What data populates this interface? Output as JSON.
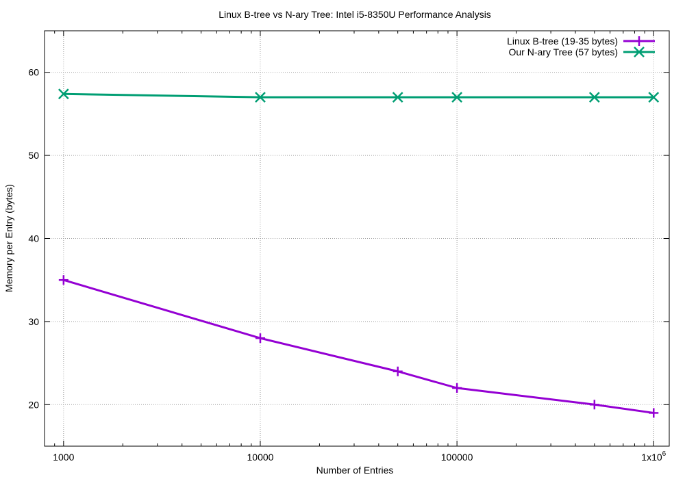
{
  "chart_data": {
    "type": "line",
    "title": "Linux B-tree vs N-ary Tree: Intel i5-8350U Performance Analysis",
    "xlabel": "Number of Entries",
    "ylabel": "Memory per Entry (bytes)",
    "xscale": "log",
    "xlim": [
      800,
      1200000
    ],
    "ylim": [
      15,
      65
    ],
    "xticks": [
      1000,
      10000,
      100000,
      1000000
    ],
    "xtick_labels": [
      "1000",
      "10000",
      "100000",
      "1x10"
    ],
    "xtick_superscripts": [
      "",
      "",
      "",
      "6"
    ],
    "yticks": [
      20,
      30,
      40,
      50,
      60
    ],
    "ytick_labels": [
      "20",
      "30",
      "40",
      "50",
      "60"
    ],
    "grid": true,
    "legend_position": "top-right",
    "x": [
      1000,
      10000,
      50000,
      100000,
      500000,
      1000000
    ],
    "series": [
      {
        "name": "Linux B-tree (19-35 bytes)",
        "color": "#9400d3",
        "marker": "plus",
        "values": [
          35,
          28,
          24,
          22,
          20,
          19
        ]
      },
      {
        "name": "Our N-ary Tree (57 bytes)",
        "color": "#009e73",
        "marker": "x",
        "values": [
          57.4,
          57,
          57,
          57,
          57,
          57
        ]
      }
    ]
  }
}
